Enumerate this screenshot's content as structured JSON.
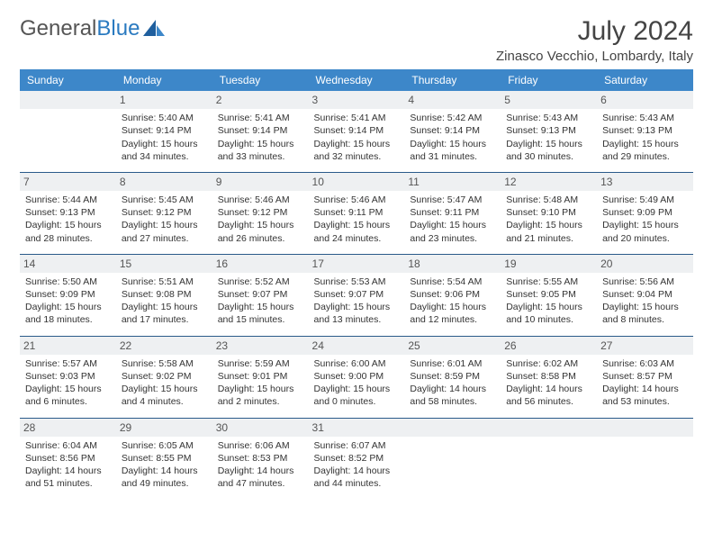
{
  "logo": {
    "text1": "General",
    "text2": "Blue"
  },
  "title": "July 2024",
  "location": "Zinasco Vecchio, Lombardy, Italy",
  "colors": {
    "header_bg": "#3d87c9",
    "header_text": "#ffffff",
    "border": "#2a5a8a",
    "daynum_bg": "#eef0f2",
    "body_text": "#333333",
    "logo_gray": "#555555",
    "logo_blue": "#2a7ac0"
  },
  "dayHeaders": [
    "Sunday",
    "Monday",
    "Tuesday",
    "Wednesday",
    "Thursday",
    "Friday",
    "Saturday"
  ],
  "grid": [
    [
      null,
      {
        "n": "1",
        "sr": "5:40 AM",
        "ss": "9:14 PM",
        "dl": "15 hours and 34 minutes."
      },
      {
        "n": "2",
        "sr": "5:41 AM",
        "ss": "9:14 PM",
        "dl": "15 hours and 33 minutes."
      },
      {
        "n": "3",
        "sr": "5:41 AM",
        "ss": "9:14 PM",
        "dl": "15 hours and 32 minutes."
      },
      {
        "n": "4",
        "sr": "5:42 AM",
        "ss": "9:14 PM",
        "dl": "15 hours and 31 minutes."
      },
      {
        "n": "5",
        "sr": "5:43 AM",
        "ss": "9:13 PM",
        "dl": "15 hours and 30 minutes."
      },
      {
        "n": "6",
        "sr": "5:43 AM",
        "ss": "9:13 PM",
        "dl": "15 hours and 29 minutes."
      }
    ],
    [
      {
        "n": "7",
        "sr": "5:44 AM",
        "ss": "9:13 PM",
        "dl": "15 hours and 28 minutes."
      },
      {
        "n": "8",
        "sr": "5:45 AM",
        "ss": "9:12 PM",
        "dl": "15 hours and 27 minutes."
      },
      {
        "n": "9",
        "sr": "5:46 AM",
        "ss": "9:12 PM",
        "dl": "15 hours and 26 minutes."
      },
      {
        "n": "10",
        "sr": "5:46 AM",
        "ss": "9:11 PM",
        "dl": "15 hours and 24 minutes."
      },
      {
        "n": "11",
        "sr": "5:47 AM",
        "ss": "9:11 PM",
        "dl": "15 hours and 23 minutes."
      },
      {
        "n": "12",
        "sr": "5:48 AM",
        "ss": "9:10 PM",
        "dl": "15 hours and 21 minutes."
      },
      {
        "n": "13",
        "sr": "5:49 AM",
        "ss": "9:09 PM",
        "dl": "15 hours and 20 minutes."
      }
    ],
    [
      {
        "n": "14",
        "sr": "5:50 AM",
        "ss": "9:09 PM",
        "dl": "15 hours and 18 minutes."
      },
      {
        "n": "15",
        "sr": "5:51 AM",
        "ss": "9:08 PM",
        "dl": "15 hours and 17 minutes."
      },
      {
        "n": "16",
        "sr": "5:52 AM",
        "ss": "9:07 PM",
        "dl": "15 hours and 15 minutes."
      },
      {
        "n": "17",
        "sr": "5:53 AM",
        "ss": "9:07 PM",
        "dl": "15 hours and 13 minutes."
      },
      {
        "n": "18",
        "sr": "5:54 AM",
        "ss": "9:06 PM",
        "dl": "15 hours and 12 minutes."
      },
      {
        "n": "19",
        "sr": "5:55 AM",
        "ss": "9:05 PM",
        "dl": "15 hours and 10 minutes."
      },
      {
        "n": "20",
        "sr": "5:56 AM",
        "ss": "9:04 PM",
        "dl": "15 hours and 8 minutes."
      }
    ],
    [
      {
        "n": "21",
        "sr": "5:57 AM",
        "ss": "9:03 PM",
        "dl": "15 hours and 6 minutes."
      },
      {
        "n": "22",
        "sr": "5:58 AM",
        "ss": "9:02 PM",
        "dl": "15 hours and 4 minutes."
      },
      {
        "n": "23",
        "sr": "5:59 AM",
        "ss": "9:01 PM",
        "dl": "15 hours and 2 minutes."
      },
      {
        "n": "24",
        "sr": "6:00 AM",
        "ss": "9:00 PM",
        "dl": "15 hours and 0 minutes."
      },
      {
        "n": "25",
        "sr": "6:01 AM",
        "ss": "8:59 PM",
        "dl": "14 hours and 58 minutes."
      },
      {
        "n": "26",
        "sr": "6:02 AM",
        "ss": "8:58 PM",
        "dl": "14 hours and 56 minutes."
      },
      {
        "n": "27",
        "sr": "6:03 AM",
        "ss": "8:57 PM",
        "dl": "14 hours and 53 minutes."
      }
    ],
    [
      {
        "n": "28",
        "sr": "6:04 AM",
        "ss": "8:56 PM",
        "dl": "14 hours and 51 minutes."
      },
      {
        "n": "29",
        "sr": "6:05 AM",
        "ss": "8:55 PM",
        "dl": "14 hours and 49 minutes."
      },
      {
        "n": "30",
        "sr": "6:06 AM",
        "ss": "8:53 PM",
        "dl": "14 hours and 47 minutes."
      },
      {
        "n": "31",
        "sr": "6:07 AM",
        "ss": "8:52 PM",
        "dl": "14 hours and 44 minutes."
      },
      null,
      null,
      null
    ]
  ],
  "labels": {
    "sunrise": "Sunrise:",
    "sunset": "Sunset:",
    "daylight": "Daylight:"
  }
}
